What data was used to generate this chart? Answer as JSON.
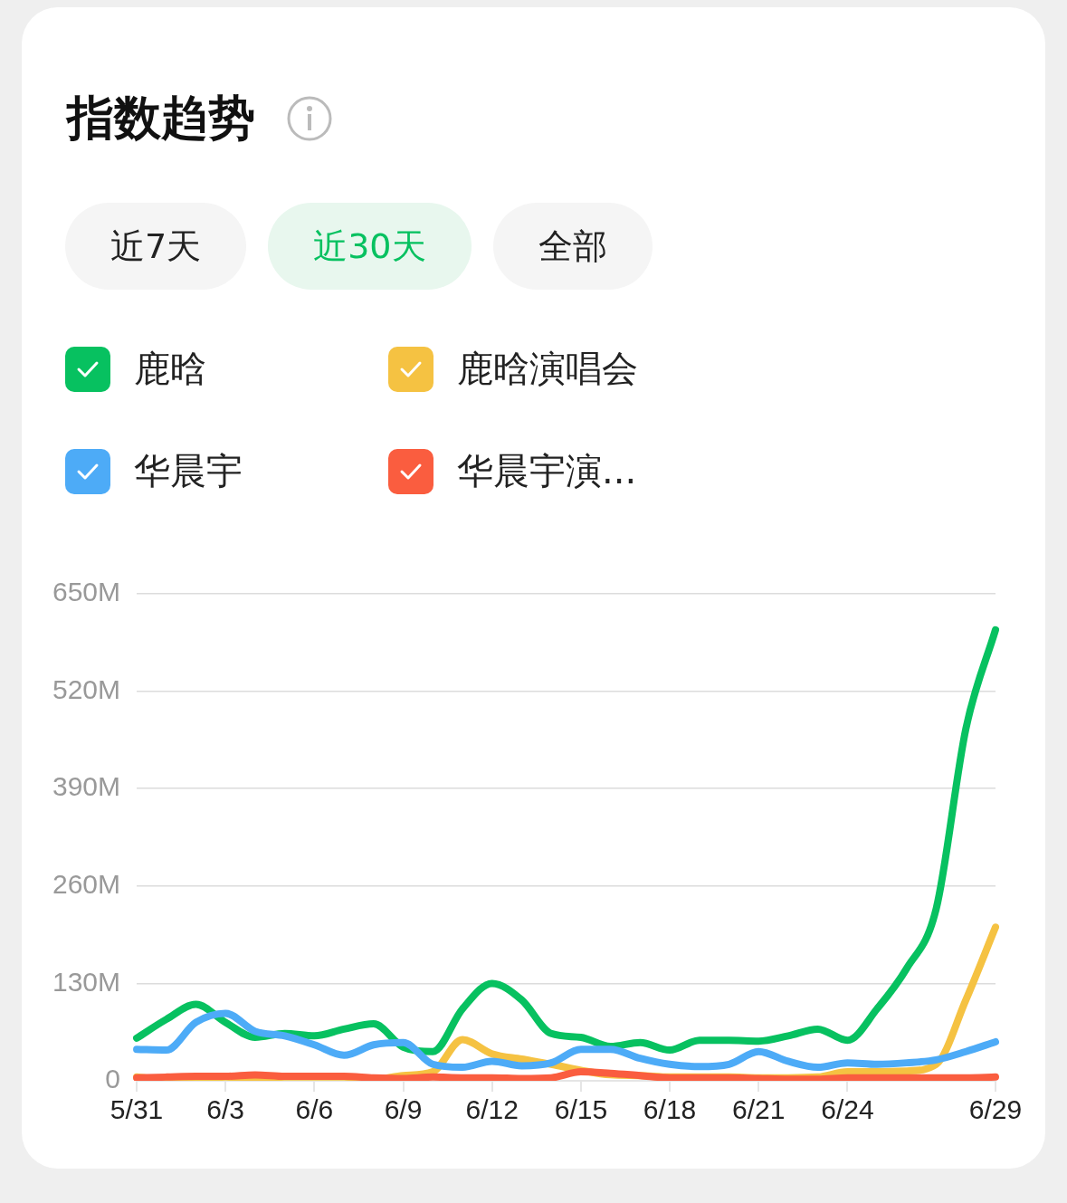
{
  "chart_data": {
    "type": "line",
    "title": "指数趋势",
    "annotations": [
      "近7天",
      "近30天",
      "全部"
    ],
    "categories": [
      "5/31",
      null,
      null,
      "6/3",
      null,
      null,
      "6/6",
      null,
      null,
      "6/9",
      null,
      null,
      "6/12",
      null,
      null,
      "6/15",
      null,
      null,
      "6/18",
      null,
      null,
      "6/21",
      null,
      null,
      "6/24",
      null,
      null,
      null,
      null,
      "6/29"
    ],
    "series": [
      {
        "name": "鹿晗",
        "color": "#07c160",
        "values": [
          57,
          82,
          102,
          78,
          58,
          63,
          60,
          69,
          76,
          45,
          39,
          96,
          130,
          108,
          63,
          58,
          46,
          51,
          41,
          54,
          54,
          53,
          60,
          69,
          54,
          96,
          150,
          230,
          470,
          602
        ]
      },
      {
        "name": "鹿晗演唱会",
        "color": "#f5c242",
        "values": [
          5,
          2,
          2,
          5,
          2,
          5,
          5,
          5,
          2,
          7,
          12,
          55,
          36,
          29,
          22,
          14,
          8,
          7,
          5,
          5,
          5,
          4,
          4,
          5,
          12,
          12,
          13,
          22,
          108,
          205
        ]
      },
      {
        "name": "华晨宇",
        "color": "#4dabf7",
        "values": [
          42,
          41,
          78,
          90,
          66,
          60,
          48,
          34,
          48,
          51,
          22,
          18,
          26,
          20,
          24,
          42,
          42,
          30,
          22,
          19,
          22,
          39,
          26,
          18,
          24,
          22,
          24,
          28,
          39,
          52
        ]
      },
      {
        "name": "华晨宇演...",
        "color": "#fa5d3f",
        "values": [
          4,
          5,
          6,
          6,
          8,
          6,
          6,
          6,
          4,
          3,
          5,
          4,
          4,
          3,
          4,
          12,
          10,
          7,
          4,
          4,
          4,
          3,
          2,
          2,
          4,
          4,
          4,
          4,
          4,
          5
        ]
      }
    ],
    "ylim": [
      0,
      650
    ],
    "yticks": [
      0,
      {
        "value": 130,
        "label": "130M"
      },
      {
        "value": 260,
        "label": "260M"
      },
      {
        "value": 390,
        "label": "390M"
      },
      {
        "value": 520,
        "label": "520M"
      },
      {
        "value": 650,
        "label": "650M"
      }
    ],
    "grid": "y",
    "legend": "top left",
    "marker": "none",
    "line_style": "solid"
  }
}
